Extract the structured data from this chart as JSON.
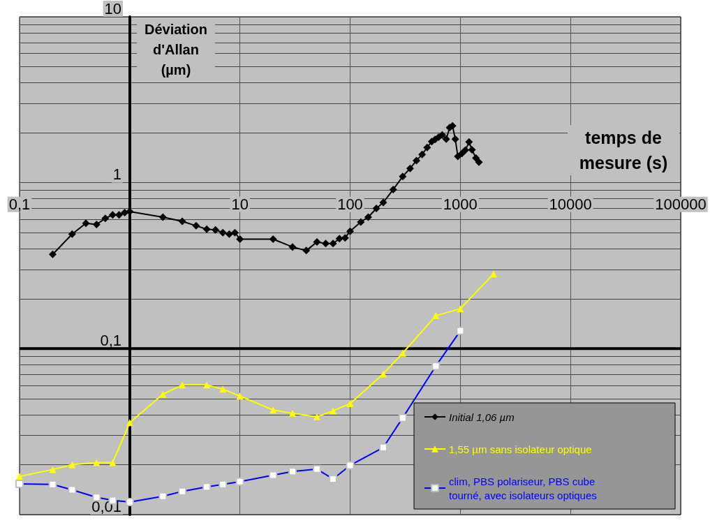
{
  "chart_data": {
    "type": "line",
    "xlabel": "temps de mesure (s)",
    "ylabel": "Déviation d'Allan (µm)",
    "log": "xy",
    "grid": true,
    "legend": "bottom right",
    "xlim": [
      0.1,
      100000
    ],
    "xticks": [
      {
        "value": 0.1,
        "label": "0,1"
      },
      {
        "value": 1,
        "label": null
      },
      10,
      100,
      1000,
      10000,
      100000
    ],
    "ylim": [
      0.01,
      10
    ],
    "yticks": [
      {
        "value": 0.01,
        "label": "0,01"
      },
      {
        "value": 0.02,
        "label": null
      },
      {
        "value": 0.03,
        "label": null
      },
      {
        "value": 0.04,
        "label": null
      },
      {
        "value": 0.05,
        "label": null
      },
      {
        "value": 0.06,
        "label": null
      },
      {
        "value": 0.07,
        "label": null
      },
      {
        "value": 0.08,
        "label": null
      },
      {
        "value": 0.09,
        "label": null
      },
      {
        "value": 0.1,
        "label": "0,1"
      },
      {
        "value": 0.2,
        "label": null
      },
      {
        "value": 0.3,
        "label": null
      },
      {
        "value": 0.4,
        "label": null
      },
      {
        "value": 0.5,
        "label": null
      },
      {
        "value": 0.6,
        "label": null
      },
      {
        "value": 0.7,
        "label": null
      },
      {
        "value": 0.8,
        "label": null
      },
      {
        "value": 0.9,
        "label": null
      },
      1,
      {
        "value": 2,
        "label": null
      },
      {
        "value": 3,
        "label": null
      },
      {
        "value": 4,
        "label": null
      },
      {
        "value": 5,
        "label": null
      },
      {
        "value": 6,
        "label": null
      },
      {
        "value": 7,
        "label": null
      },
      {
        "value": 8,
        "label": null
      },
      {
        "value": 9,
        "label": null
      },
      10
    ],
    "ref_lines": [
      {
        "axis": "y",
        "value": 0.1,
        "color": "#000000"
      }
    ],
    "series": [
      {
        "name": "Initial 1,06 µm",
        "color": "#000000",
        "marker": "diamond",
        "x": [
          0.2,
          0.3,
          0.4,
          0.5,
          0.6,
          0.7,
          0.8,
          0.9,
          1,
          2,
          3,
          4,
          5,
          6,
          7,
          8,
          9,
          10,
          20,
          30,
          40,
          50,
          60,
          70,
          80,
          90,
          100,
          125,
          146,
          173,
          200,
          246,
          300,
          350,
          400,
          450,
          500,
          550,
          590,
          635,
          685,
          745,
          800,
          850,
          900,
          950,
          1035,
          1110,
          1200,
          1275,
          1385,
          1475
        ],
        "values": [
          0.37,
          0.49,
          0.57,
          0.56,
          0.61,
          0.64,
          0.64,
          0.66,
          0.67,
          0.62,
          0.585,
          0.55,
          0.525,
          0.52,
          0.5,
          0.49,
          0.5,
          0.457,
          0.457,
          0.41,
          0.39,
          0.44,
          0.43,
          0.43,
          0.46,
          0.465,
          0.51,
          0.58,
          0.62,
          0.7,
          0.76,
          0.91,
          1.09,
          1.22,
          1.36,
          1.48,
          1.63,
          1.77,
          1.82,
          1.88,
          1.94,
          1.83,
          2.15,
          2.2,
          1.83,
          1.44,
          1.5,
          1.57,
          1.76,
          1.58,
          1.41,
          1.33
        ]
      },
      {
        "name": "1,55 µm sans isolateur optique",
        "color": "#ffff00",
        "marker": "triangle",
        "x": [
          0.1,
          0.2,
          0.3,
          0.5,
          0.7,
          1,
          2,
          3,
          5,
          7,
          10,
          20,
          30,
          50,
          70,
          100,
          200,
          300,
          600,
          1000,
          2000
        ],
        "values": [
          0.017,
          0.0187,
          0.02,
          0.0206,
          0.0206,
          0.0358,
          0.0532,
          0.0604,
          0.0604,
          0.057,
          0.0518,
          0.0427,
          0.0408,
          0.0388,
          0.0422,
          0.0467,
          0.0705,
          0.094,
          0.158,
          0.174,
          0.282
        ]
      },
      {
        "name": "clim, PBS polariseur, PBS cube tourné, avec isolateurs optiques",
        "color": "#0000ff",
        "marker": "square",
        "x": [
          0.1,
          0.2,
          0.3,
          0.5,
          0.7,
          1,
          2,
          3,
          5,
          7,
          10,
          20,
          30,
          50,
          70,
          100,
          200,
          300,
          600,
          1000
        ],
        "values": [
          0.0153,
          0.0152,
          0.0141,
          0.0127,
          0.0122,
          0.0119,
          0.0129,
          0.0138,
          0.0147,
          0.0152,
          0.0158,
          0.0173,
          0.0182,
          0.0188,
          0.0164,
          0.0198,
          0.0254,
          0.0383,
          0.0786,
          0.128
        ]
      }
    ]
  }
}
